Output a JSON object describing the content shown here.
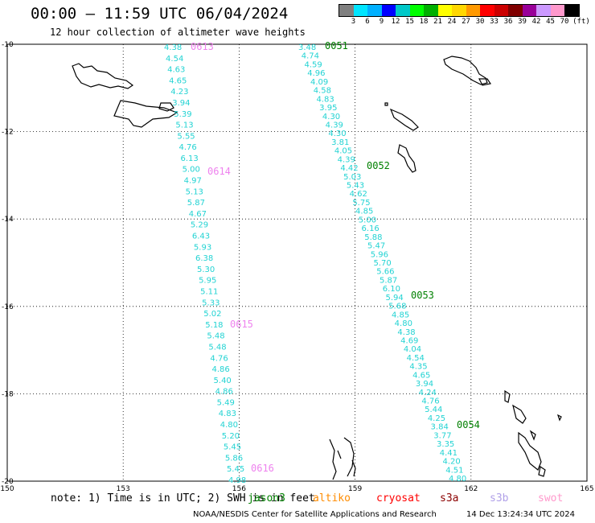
{
  "title": "00:00 – 11:59 UTC 06/04/2024",
  "subtitle": "12 hour collection of altimeter wave heights",
  "colorbar": {
    "unit": "(ft)",
    "labels": [
      "3",
      "6",
      "9",
      "12",
      "15",
      "18",
      "21",
      "24",
      "27",
      "30",
      "33",
      "36",
      "39",
      "42",
      "45",
      "70"
    ],
    "colors": [
      "#808080",
      "#00e5ff",
      "#00b0ff",
      "#0000ff",
      "#00c8c8",
      "#00ff00",
      "#00b000",
      "#ffff00",
      "#ffd700",
      "#ff9900",
      "#ff0000",
      "#cc0000",
      "#800000",
      "#990099",
      "#cc99ff",
      "#ff99cc",
      "#000000"
    ]
  },
  "map": {
    "lat_ticks": [
      "-10",
      "-12",
      "-14",
      "-16",
      "-18",
      "-20"
    ],
    "lon_ticks": [
      "150",
      "153",
      "156",
      "159",
      "162",
      "165"
    ],
    "lat_range": [
      -20,
      -10
    ],
    "lon_range": [
      150,
      165
    ]
  },
  "tracks": [
    {
      "color": "#22d3d3",
      "values": [
        "4.38",
        "4.54",
        "4.63",
        "4.65",
        "4.23",
        "3.94",
        "5.39",
        "5.13",
        "5.55",
        "4.76",
        "6.13",
        "5.00",
        "4.97",
        "5.13",
        "5.87",
        "4.67",
        "5.29",
        "6.43",
        "5.93",
        "6.38",
        "5.30",
        "5.95",
        "5.11",
        "5.33",
        "5.02",
        "5.18",
        "5.48",
        "5.48",
        "4.76",
        "4.86",
        "5.40",
        "4.86",
        "5.49",
        "4.83",
        "4.80",
        "5.20",
        "5.45",
        "5.86",
        "5.45",
        "4.98"
      ]
    },
    {
      "color": "#22d3d3",
      "values": [
        "3.48",
        "4.74",
        "4.59",
        "4.96",
        "4.09",
        "4.58",
        "4.83",
        "3.95",
        "4.30",
        "4.39",
        "4.30",
        "3.81",
        "4.05",
        "4.39",
        "4.42",
        "5.03",
        "5.43",
        "4.62",
        "5.75",
        "4.85",
        "5.00",
        "6.16",
        "5.88",
        "5.47",
        "5.96",
        "5.70",
        "5.66",
        "5.87",
        "6.10",
        "5.94",
        "5.68",
        "4.85",
        "4.80",
        "4.38",
        "4.69",
        "4.04",
        "4.54",
        "4.35",
        "4.65",
        "3.94",
        "4.24",
        "4.76",
        "5.44",
        "4.25",
        "3.84",
        "3.77",
        "3.35",
        "4.41",
        "4.20",
        "4.51",
        "4.80"
      ]
    }
  ],
  "pass_labels": [
    {
      "text": "0613",
      "color": "#ee82ee"
    },
    {
      "text": "0614",
      "color": "#ee82ee"
    },
    {
      "text": "0615",
      "color": "#ee82ee"
    },
    {
      "text": "0616",
      "color": "#ee82ee"
    },
    {
      "text": "0051",
      "color": "#008000"
    },
    {
      "text": "0052",
      "color": "#008000"
    },
    {
      "text": "0053",
      "color": "#008000"
    },
    {
      "text": "0054",
      "color": "#008000"
    }
  ],
  "note": "note:  1) Time is in UTC; 2) SWH is in feet",
  "legend": [
    {
      "text": "jason3",
      "color": "#008000"
    },
    {
      "text": "altiko",
      "color": "#ff8c00"
    },
    {
      "text": "cryosat",
      "color": "#ff0000"
    },
    {
      "text": "s3a",
      "color": "#8b0000"
    },
    {
      "text": "s3b",
      "color": "#b0a0e8"
    },
    {
      "text": "swot",
      "color": "#ff99cc"
    }
  ],
  "footer": "NOAA/NESDIS Center for Satellite Applications and Research",
  "footer_time": "14 Dec 13:24:34 UTC 2024"
}
